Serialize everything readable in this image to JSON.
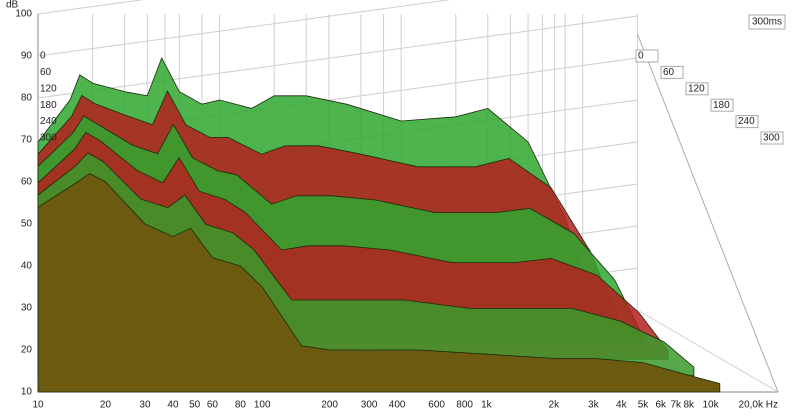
{
  "chart_data": {
    "type": "waterfall",
    "y_label": "dB",
    "annotation": "300ms",
    "x": [
      10,
      15,
      17,
      20,
      30,
      40,
      48,
      60,
      80,
      100,
      150,
      200,
      300,
      500,
      1000,
      2000,
      3000,
      5000,
      8000,
      11000
    ],
    "series": [
      {
        "name": "0",
        "color": "#2fa82f",
        "values": [
          50,
          60,
          66,
          64,
          62,
          61,
          70,
          62,
          59,
          60,
          58,
          61,
          61,
          59,
          55,
          56,
          58,
          50,
          32,
          13
        ]
      },
      {
        "name": "60",
        "color": "#b52020",
        "values": [
          51,
          60,
          65,
          63,
          60,
          58,
          66,
          58,
          55,
          55,
          51,
          53,
          53,
          51,
          48,
          48,
          50,
          43,
          28,
          13
        ]
      },
      {
        "name": "120",
        "color": "#2fa82f",
        "values": [
          52,
          60,
          64,
          62,
          57,
          55,
          62,
          54,
          51,
          50,
          43,
          45,
          45,
          44,
          41,
          41,
          42,
          36,
          25,
          12
        ]
      },
      {
        "name": "180",
        "color": "#b52020",
        "values": [
          52,
          60,
          64,
          62,
          55,
          52,
          58,
          50,
          48,
          45,
          36,
          37,
          37,
          36,
          33,
          33,
          34,
          30,
          21,
          12
        ]
      },
      {
        "name": "240",
        "color": "#3a9a2a",
        "values": [
          53,
          60,
          63,
          61,
          52,
          50,
          53,
          46,
          44,
          40,
          28,
          28,
          28,
          28,
          26,
          26,
          26,
          23,
          18,
          12
        ]
      },
      {
        "name": "300",
        "color": "#6b5a10",
        "values": [
          54,
          60,
          62,
          60,
          50,
          47,
          49,
          42,
          40,
          35,
          21,
          20,
          20,
          20,
          19,
          18,
          18,
          17,
          14,
          12
        ]
      }
    ],
    "log_x": true,
    "grid": true,
    "xlim": [
      10,
      20000
    ],
    "ylim": [
      10,
      100
    ],
    "xticks": [
      10,
      20,
      30,
      40,
      50,
      60,
      80,
      100,
      200,
      300,
      400,
      600,
      800,
      {
        "value": 1000,
        "label": "1k"
      },
      {
        "value": 2000,
        "label": "2k"
      },
      {
        "value": 3000,
        "label": "3k"
      },
      {
        "value": 4000,
        "label": "4k"
      },
      {
        "value": 5000,
        "label": "5k"
      },
      {
        "value": 6000,
        "label": "6k"
      },
      {
        "value": 7000,
        "label": "7k"
      },
      {
        "value": 8000,
        "label": "8k"
      },
      {
        "value": 10000,
        "label": "10k"
      },
      {
        "value": 20000,
        "label": "20,0k Hz"
      }
    ],
    "yticks": [
      10,
      20,
      30,
      40,
      50,
      60,
      70,
      80,
      90,
      100
    ]
  }
}
